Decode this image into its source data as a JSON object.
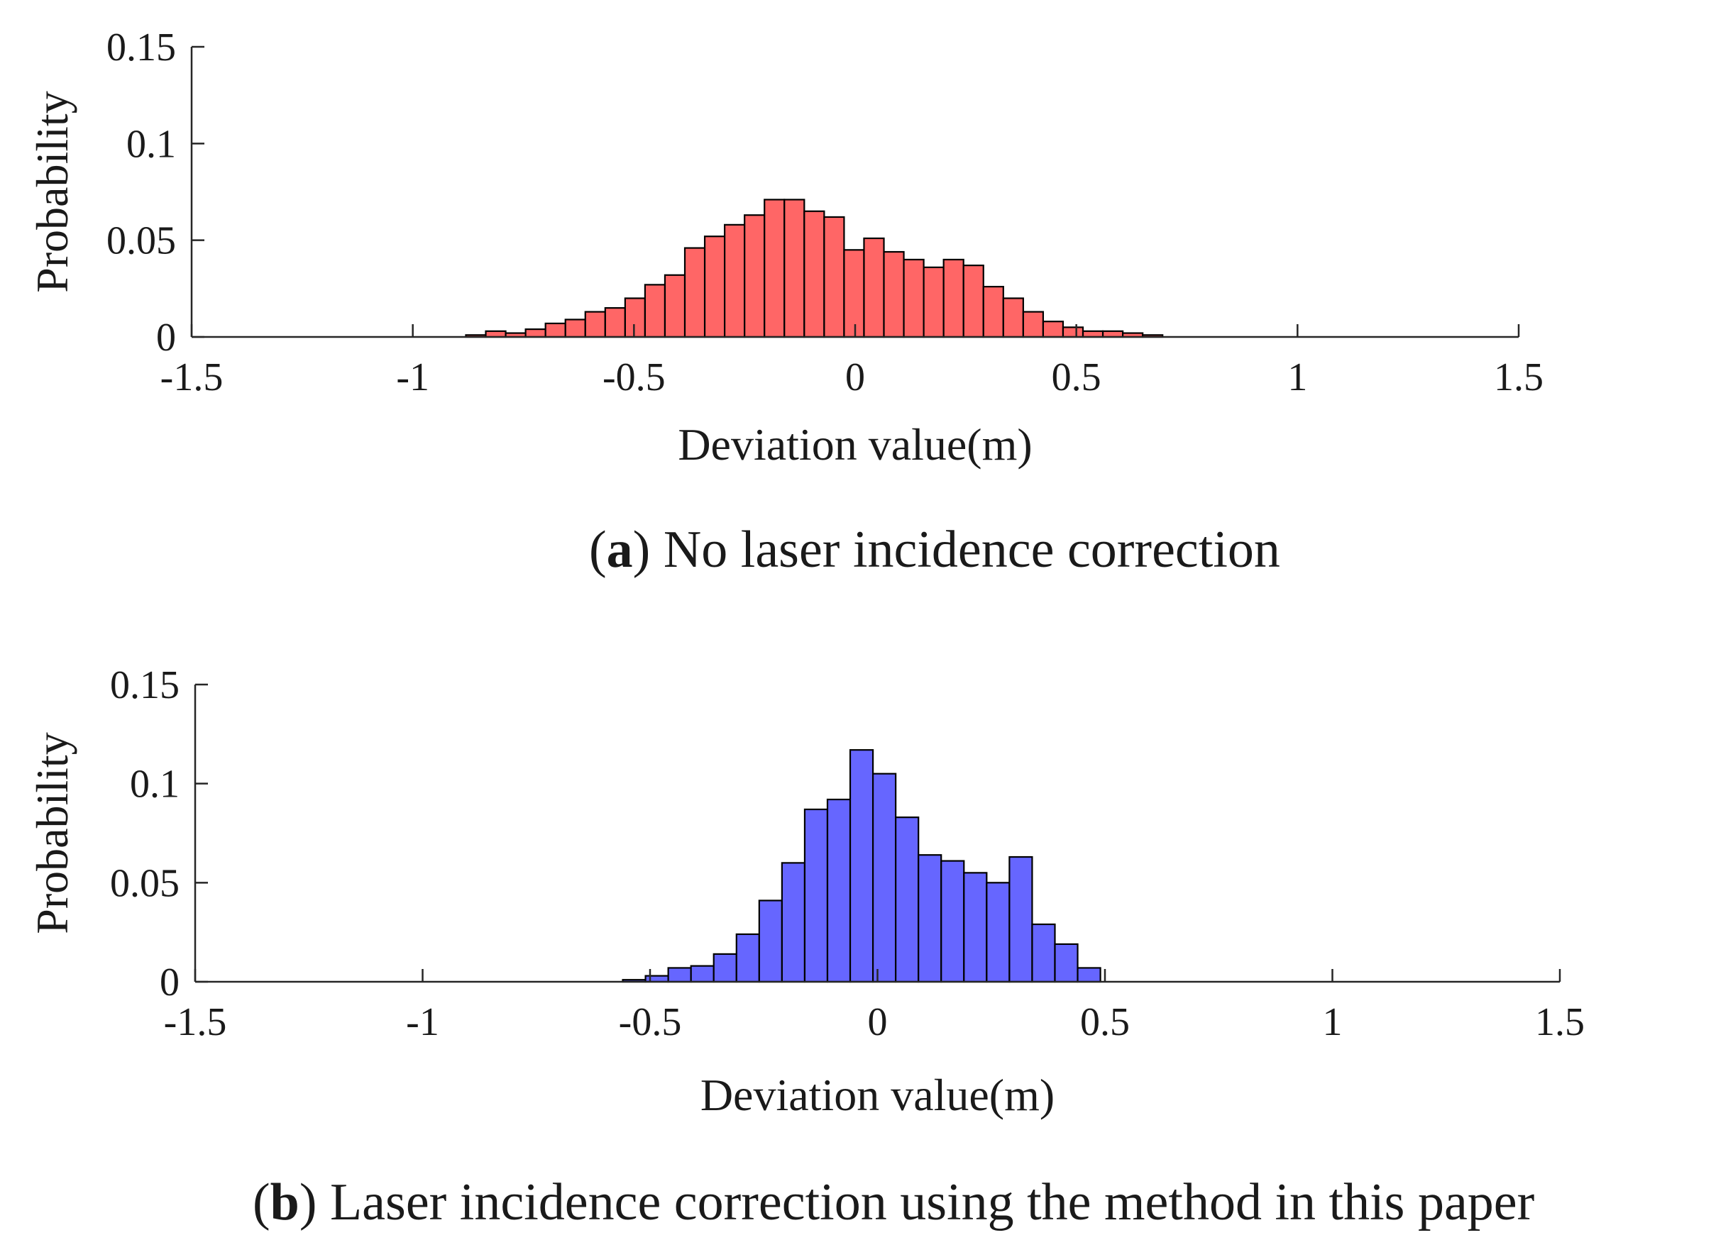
{
  "chart_data": [
    {
      "type": "bar",
      "panel": "a",
      "title": "",
      "xlabel": "Deviation value(m)",
      "ylabel": "Probability",
      "xlim": [
        -1.5,
        1.5
      ],
      "ylim": [
        0,
        0.15
      ],
      "xticks": [
        -1.5,
        -1,
        -0.5,
        0,
        0.5,
        1,
        1.5
      ],
      "xtick_labels": [
        "-1.5",
        "-1",
        "-0.5",
        "0",
        "0.5",
        "1",
        "1.5"
      ],
      "yticks": [
        0,
        0.05,
        0.1,
        0.15
      ],
      "ytick_labels": [
        "0",
        "0.05",
        "0.1",
        "0.15"
      ],
      "bin_width": 0.045,
      "bar_color": "#FF6666",
      "edge_color": "#000000",
      "series": [
        {
          "name": "No laser incidence correction",
          "bin_left": [
            -0.88,
            -0.835,
            -0.79,
            -0.745,
            -0.7,
            -0.655,
            -0.61,
            -0.565,
            -0.52,
            -0.475,
            -0.43,
            -0.385,
            -0.34,
            -0.295,
            -0.25,
            -0.205,
            -0.16,
            -0.115,
            -0.07,
            -0.025,
            0.02,
            0.065,
            0.11,
            0.155,
            0.2,
            0.245,
            0.29,
            0.335,
            0.38,
            0.425,
            0.47,
            0.515,
            0.56,
            0.605,
            0.65
          ],
          "values": [
            0.001,
            0.003,
            0.002,
            0.004,
            0.007,
            0.009,
            0.013,
            0.015,
            0.02,
            0.027,
            0.032,
            0.046,
            0.052,
            0.058,
            0.063,
            0.071,
            0.071,
            0.065,
            0.062,
            0.045,
            0.051,
            0.044,
            0.04,
            0.036,
            0.04,
            0.037,
            0.026,
            0.02,
            0.013,
            0.008,
            0.005,
            0.003,
            0.003,
            0.002,
            0.001
          ]
        }
      ]
    },
    {
      "type": "bar",
      "panel": "b",
      "title": "",
      "xlabel": "Deviation value(m)",
      "ylabel": "Probability",
      "xlim": [
        -1.5,
        1.5
      ],
      "ylim": [
        0,
        0.15
      ],
      "xticks": [
        -1.5,
        -1,
        -0.5,
        0,
        0.5,
        1,
        1.5
      ],
      "xtick_labels": [
        "-1.5",
        "-1",
        "-0.5",
        "0",
        "0.5",
        "1",
        "1.5"
      ],
      "yticks": [
        0,
        0.05,
        0.1,
        0.15
      ],
      "ytick_labels": [
        "0",
        "0.05",
        "0.1",
        "0.15"
      ],
      "bin_width": 0.05,
      "bar_color": "#6666FF",
      "edge_color": "#000000",
      "series": [
        {
          "name": "Laser incidence correction using the method in this paper",
          "bin_left": [
            -0.56,
            -0.51,
            -0.46,
            -0.41,
            -0.36,
            -0.31,
            -0.26,
            -0.21,
            -0.16,
            -0.11,
            -0.06,
            -0.01,
            0.04,
            0.09,
            0.14,
            0.19,
            0.24,
            0.29,
            0.34,
            0.39,
            0.44
          ],
          "values": [
            0.001,
            0.003,
            0.007,
            0.008,
            0.014,
            0.024,
            0.041,
            0.06,
            0.087,
            0.092,
            0.117,
            0.105,
            0.083,
            0.064,
            0.061,
            0.055,
            0.05,
            0.063,
            0.029,
            0.019,
            0.007
          ]
        }
      ]
    }
  ],
  "captions": {
    "a": {
      "letter": "a",
      "text": "No laser incidence correction"
    },
    "b": {
      "letter": "b",
      "text": "Laser incidence correction using the method in this paper"
    }
  }
}
